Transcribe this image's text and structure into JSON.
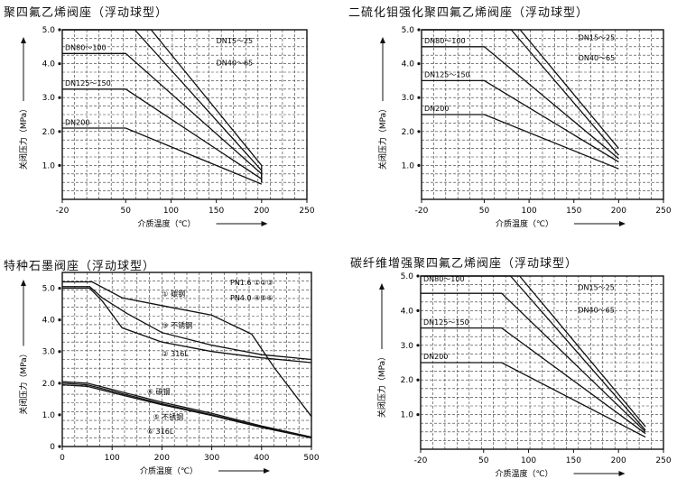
{
  "chart_data": [
    {
      "type": "line",
      "title": "聚四氟乙烯阀座（浮动球型）",
      "xlabel": "介质温度（℃）",
      "ylabel": "关闭压力（MPa）",
      "xlim": [
        -20,
        250
      ],
      "ylim": [
        0,
        5.0
      ],
      "xticks": [
        "-20",
        "50",
        "100",
        "150",
        "200",
        "250"
      ],
      "xtick_values": [
        -20,
        50,
        100,
        150,
        200,
        250
      ],
      "yticks": [
        "1.0",
        "2.0",
        "3.0",
        "4.0",
        "5.0"
      ],
      "ytick_values": [
        1.0,
        2.0,
        3.0,
        4.0,
        5.0
      ],
      "grid": true,
      "series": [
        {
          "name": "DN15～25",
          "x": [
            -20,
            50,
            78,
            200,
            200
          ],
          "y": [
            5.0,
            5.0,
            5.0,
            1.0,
            0.5
          ]
        },
        {
          "name": "DN40～65",
          "x": [
            -20,
            50,
            60,
            200,
            200
          ],
          "y": [
            5.0,
            5.0,
            5.0,
            0.85,
            0.5
          ]
        },
        {
          "name": "DN80～100",
          "x": [
            -20,
            50,
            200,
            200
          ],
          "y": [
            4.3,
            4.3,
            0.75,
            0.5
          ]
        },
        {
          "name": "DN125～150",
          "x": [
            -20,
            50,
            200,
            200
          ],
          "y": [
            3.25,
            3.25,
            0.6,
            0.5
          ]
        },
        {
          "name": "DN200",
          "x": [
            -20,
            50,
            200
          ],
          "y": [
            2.1,
            2.1,
            0.45
          ]
        }
      ],
      "labels": [
        {
          "text": "DN80～100",
          "x": -17,
          "y": 4.4
        },
        {
          "text": "DN15～25",
          "x": 150,
          "y": 4.6
        },
        {
          "text": "DN40～65",
          "x": 150,
          "y": 3.95
        },
        {
          "text": "DN125～150",
          "x": -17,
          "y": 3.35
        },
        {
          "text": "DN200",
          "x": -17,
          "y": 2.2
        }
      ]
    },
    {
      "type": "line",
      "title": "二硫化钼强化聚四氟乙烯阀座（浮动球型）",
      "xlabel": "介质温度（℃）",
      "ylabel": "关闭压力（MPa）",
      "xlim": [
        -20,
        250
      ],
      "ylim": [
        0,
        5.0
      ],
      "xticks": [
        "-20",
        "50",
        "100",
        "150",
        "200",
        "250"
      ],
      "xtick_values": [
        -20,
        50,
        100,
        150,
        200,
        250
      ],
      "yticks": [
        "1.0",
        "2.0",
        "3.0",
        "4.0",
        "5.0"
      ],
      "ytick_values": [
        1.0,
        2.0,
        3.0,
        4.0,
        5.0
      ],
      "grid": true,
      "series": [
        {
          "name": "DN15～25",
          "x": [
            -20,
            50,
            90,
            200
          ],
          "y": [
            5.0,
            5.0,
            5.0,
            1.5
          ]
        },
        {
          "name": "DN40～65",
          "x": [
            -20,
            50,
            80,
            200
          ],
          "y": [
            5.0,
            5.0,
            5.0,
            1.3
          ]
        },
        {
          "name": "DN80～100",
          "x": [
            -20,
            50,
            200
          ],
          "y": [
            4.5,
            4.5,
            1.2
          ]
        },
        {
          "name": "DN125～150",
          "x": [
            -20,
            50,
            200
          ],
          "y": [
            3.5,
            3.5,
            1.1
          ]
        },
        {
          "name": "DN200",
          "x": [
            -20,
            50,
            200
          ],
          "y": [
            2.5,
            2.5,
            0.9
          ]
        }
      ],
      "labels": [
        {
          "text": "DN80～100",
          "x": -17,
          "y": 4.6
        },
        {
          "text": "DN15～25",
          "x": 155,
          "y": 4.7
        },
        {
          "text": "DN40～65",
          "x": 155,
          "y": 4.1
        },
        {
          "text": "DN125～150",
          "x": -17,
          "y": 3.6
        },
        {
          "text": "DN200",
          "x": -17,
          "y": 2.6
        }
      ]
    },
    {
      "type": "line",
      "title": "特种石墨阀座（浮动球型）",
      "xlabel": "介质温度（℃）",
      "ylabel": "关闭压力（MPa）",
      "xlim": [
        0,
        500
      ],
      "ylim": [
        0,
        5.5
      ],
      "xticks": [
        "0",
        "100",
        "200",
        "300",
        "400",
        "500"
      ],
      "xtick_values": [
        0,
        100,
        200,
        300,
        400,
        500
      ],
      "yticks": [
        "0",
        "1.0",
        "2.0",
        "3.0",
        "4.0",
        "5.0"
      ],
      "ytick_values": [
        0,
        1.0,
        2.0,
        3.0,
        4.0,
        5.0
      ],
      "grid": true,
      "series": [
        {
          "name": "①",
          "x": [
            0,
            60,
            120,
            200,
            300,
            380,
            425,
            500
          ],
          "y": [
            5.2,
            5.2,
            4.7,
            4.45,
            4.15,
            3.55,
            2.5,
            0.95
          ]
        },
        {
          "name": "③",
          "x": [
            0,
            55,
            80,
            130,
            200,
            300,
            400,
            500
          ],
          "y": [
            5.05,
            5.05,
            4.7,
            4.2,
            3.6,
            3.2,
            2.9,
            2.75
          ]
        },
        {
          "name": "②",
          "x": [
            0,
            55,
            80,
            120,
            200,
            300,
            400,
            500
          ],
          "y": [
            5.0,
            5.0,
            4.6,
            3.75,
            3.3,
            3.0,
            2.8,
            2.65
          ]
        },
        {
          "name": "④",
          "x": [
            0,
            50,
            100,
            200,
            300,
            400,
            500
          ],
          "y": [
            2.05,
            2.0,
            1.8,
            1.4,
            1.05,
            0.65,
            0.3
          ]
        },
        {
          "name": "⑤",
          "x": [
            0,
            50,
            100,
            200,
            300,
            400,
            500
          ],
          "y": [
            2.0,
            1.95,
            1.75,
            1.35,
            1.0,
            0.62,
            0.28
          ]
        },
        {
          "name": "⑥",
          "x": [
            0,
            50,
            100,
            200,
            300,
            400,
            500
          ],
          "y": [
            1.95,
            1.9,
            1.7,
            1.32,
            0.98,
            0.6,
            0.27
          ]
        }
      ],
      "labels": [
        {
          "text": "① 碳钢",
          "x": 200,
          "y": 4.75
        },
        {
          "text": "③ 不锈钢",
          "x": 200,
          "y": 3.75
        },
        {
          "text": "② 316L",
          "x": 200,
          "y": 2.85
        },
        {
          "text": "④ 碳钢",
          "x": 170,
          "y": 1.65
        },
        {
          "text": "⑤ 不锈钢",
          "x": 182,
          "y": 0.85
        },
        {
          "text": "⑥ 316L",
          "x": 170,
          "y": 0.4
        }
      ],
      "legend": [
        {
          "text": "PN1.6 ①②③"
        },
        {
          "text": "PN4.0 ④⑤⑥"
        }
      ]
    },
    {
      "type": "line",
      "title": "碳纤维增强聚四氟乙烯阀座（浮动球型）",
      "xlabel": "介质温度（℃）",
      "ylabel": "关闭压力（MPa）",
      "xlim": [
        -20,
        250
      ],
      "ylim": [
        0,
        5.0
      ],
      "xticks": [
        "-20",
        "50",
        "100",
        "150",
        "200",
        "250"
      ],
      "xtick_values": [
        -20,
        50,
        100,
        150,
        200,
        250
      ],
      "yticks": [
        "1.0",
        "2.0",
        "3.0",
        "4.0",
        "5.0"
      ],
      "ytick_values": [
        1.0,
        2.0,
        3.0,
        4.0,
        5.0
      ],
      "grid": true,
      "series": [
        {
          "name": "DN15～25",
          "x": [
            -20,
            70,
            90,
            230
          ],
          "y": [
            5.0,
            5.0,
            5.0,
            0.65
          ]
        },
        {
          "name": "DN40～65",
          "x": [
            -20,
            70,
            80,
            230
          ],
          "y": [
            5.0,
            5.0,
            5.0,
            0.55
          ]
        },
        {
          "name": "DN80～100",
          "x": [
            -20,
            70,
            230
          ],
          "y": [
            4.5,
            4.5,
            0.5
          ]
        },
        {
          "name": "DN125～150",
          "x": [
            -20,
            70,
            230
          ],
          "y": [
            3.5,
            3.5,
            0.45
          ]
        },
        {
          "name": "DN200",
          "x": [
            -20,
            70,
            230
          ],
          "y": [
            2.5,
            2.5,
            0.35
          ]
        }
      ],
      "labels": [
        {
          "text": "DN80～100",
          "x": -17,
          "y": 4.85
        },
        {
          "text": "DN15～25",
          "x": 155,
          "y": 4.6
        },
        {
          "text": "DN40～65",
          "x": 155,
          "y": 3.95
        },
        {
          "text": "DN125～150",
          "x": -17,
          "y": 3.6
        },
        {
          "text": "DN200",
          "x": -17,
          "y": 2.6
        }
      ]
    }
  ]
}
